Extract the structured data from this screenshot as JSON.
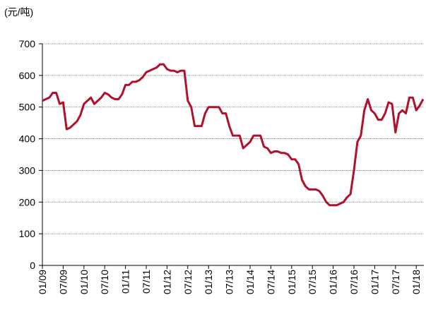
{
  "chart_data": {
    "type": "line",
    "title": "(元/吨)",
    "x": [
      "01/09",
      "02/09",
      "03/09",
      "04/09",
      "05/09",
      "06/09",
      "07/09",
      "08/09",
      "09/09",
      "10/09",
      "11/09",
      "12/09",
      "01/10",
      "02/10",
      "03/10",
      "04/10",
      "05/10",
      "06/10",
      "07/10",
      "08/10",
      "09/10",
      "10/10",
      "11/10",
      "12/10",
      "01/11",
      "02/11",
      "03/11",
      "04/11",
      "05/11",
      "06/11",
      "07/11",
      "08/11",
      "09/11",
      "10/11",
      "11/11",
      "12/11",
      "01/12",
      "02/12",
      "03/12",
      "04/12",
      "05/12",
      "06/12",
      "07/12",
      "08/12",
      "09/12",
      "10/12",
      "11/12",
      "12/12",
      "01/13",
      "02/13",
      "03/13",
      "04/13",
      "05/13",
      "06/13",
      "07/13",
      "08/13",
      "09/13",
      "10/13",
      "11/13",
      "12/13",
      "01/14",
      "02/14",
      "03/14",
      "04/14",
      "05/14",
      "06/14",
      "07/14",
      "08/14",
      "09/14",
      "10/14",
      "11/14",
      "12/14",
      "01/15",
      "02/15",
      "03/15",
      "04/15",
      "05/15",
      "06/15",
      "07/15",
      "08/15",
      "09/15",
      "10/15",
      "11/15",
      "12/15",
      "01/16",
      "02/16",
      "03/16",
      "04/16",
      "05/16",
      "06/16",
      "07/16",
      "08/16",
      "09/16",
      "10/16",
      "11/16",
      "12/16",
      "01/17",
      "02/17",
      "03/17",
      "04/17",
      "05/17",
      "06/17",
      "07/17",
      "08/17",
      "09/17",
      "10/17",
      "11/17",
      "12/17",
      "01/18",
      "02/18",
      "03/18"
    ],
    "series": [
      {
        "color": "#b0102a",
        "values": [
          520,
          525,
          530,
          545,
          545,
          510,
          515,
          430,
          435,
          445,
          455,
          475,
          510,
          520,
          530,
          510,
          520,
          530,
          545,
          540,
          530,
          525,
          525,
          540,
          570,
          570,
          580,
          580,
          585,
          595,
          610,
          615,
          620,
          625,
          635,
          635,
          620,
          615,
          615,
          610,
          615,
          615,
          520,
          500,
          440,
          440,
          440,
          480,
          500,
          500,
          500,
          500,
          480,
          480,
          440,
          410,
          410,
          410,
          370,
          380,
          390,
          410,
          410,
          410,
          375,
          370,
          355,
          360,
          360,
          355,
          355,
          350,
          335,
          335,
          320,
          270,
          250,
          240,
          240,
          240,
          235,
          220,
          200,
          190,
          190,
          190,
          195,
          200,
          215,
          225,
          300,
          390,
          410,
          490,
          525,
          490,
          480,
          460,
          460,
          480,
          515,
          510,
          420,
          480,
          490,
          480,
          530,
          530,
          490,
          505,
          525
        ]
      }
    ],
    "xticks": [
      "01/09",
      "07/09",
      "01/10",
      "07/10",
      "01/11",
      "07/11",
      "01/12",
      "07/12",
      "01/13",
      "07/13",
      "01/14",
      "07/14",
      "01/15",
      "07/15",
      "01/16",
      "07/16",
      "01/17",
      "07/17",
      "01/18"
    ],
    "ylim": [
      0,
      700
    ],
    "yticks": [
      0,
      100,
      200,
      300,
      400,
      500,
      600,
      700
    ],
    "grid": true
  }
}
